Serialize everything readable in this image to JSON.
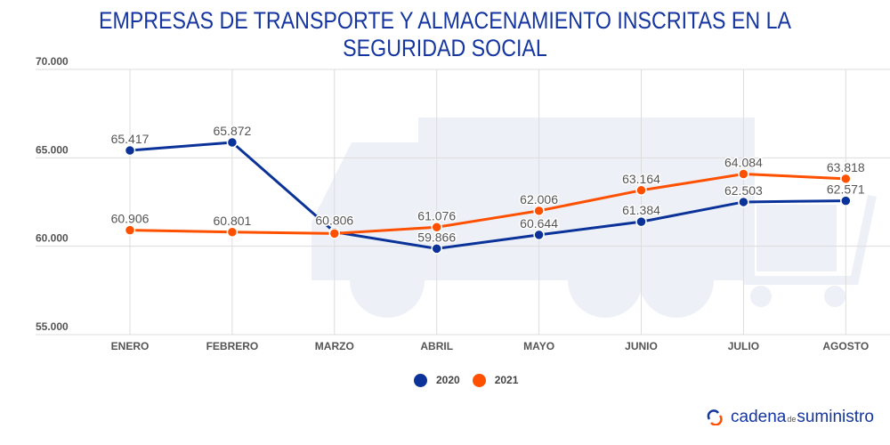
{
  "chart_data": {
    "type": "line",
    "title": "EMPRESAS DE TRANSPORTE Y ALMACENAMIENTO INSCRITAS EN LA SEGURIDAD SOCIAL",
    "categories": [
      "ENERO",
      "FEBRERO",
      "MARZO",
      "ABRIL",
      "MAYO",
      "JUNIO",
      "JULIO",
      "AGOSTO"
    ],
    "ylim": [
      55000,
      70000
    ],
    "yticks": [
      "55.000",
      "60.000",
      "65.000",
      "70.000"
    ],
    "ytick_values": [
      55000,
      60000,
      65000,
      70000
    ],
    "grid": true,
    "legend": "bottom-center",
    "series": [
      {
        "name": "2020",
        "color": "#0a3299",
        "values": [
          65417,
          65872,
          60806,
          59866,
          60644,
          61384,
          62503,
          62571
        ],
        "labels": [
          "65.417",
          "65.872",
          "60.806",
          "59.866",
          "60.644",
          "61.384",
          "62.503",
          "62.571"
        ]
      },
      {
        "name": "2021",
        "color": "#ff5000",
        "values": [
          60906,
          60801,
          60720,
          61076,
          62006,
          63164,
          64084,
          63818
        ],
        "labels": [
          "60.906",
          "60.801",
          "",
          "61.076",
          "62.006",
          "63.164",
          "64.084",
          "63.818"
        ]
      }
    ]
  },
  "logo": {
    "part1": "cadena",
    "part2": "de",
    "part3": "suministro"
  }
}
